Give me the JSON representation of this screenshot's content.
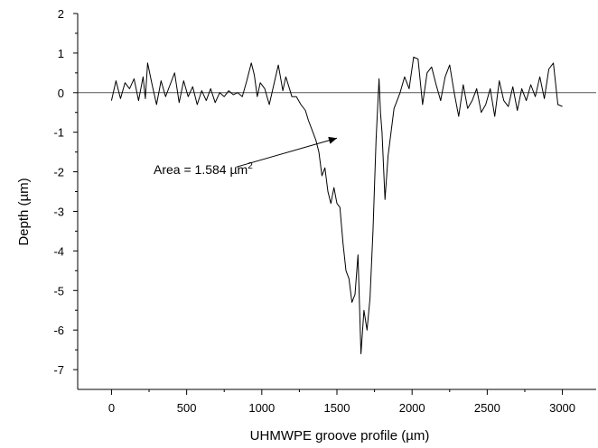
{
  "chart_data": {
    "type": "line",
    "title": "",
    "xlabel": "UHMWPE groove profile (µm)",
    "ylabel": "Depth (µm)",
    "xlim": [
      -225,
      3225
    ],
    "ylim": [
      -7.5,
      2
    ],
    "xticks": [
      0,
      500,
      1000,
      1500,
      2000,
      2500,
      3000
    ],
    "xtick_labels": [
      "0",
      "500",
      "1000",
      "1500",
      "2000",
      "2500",
      "3000"
    ],
    "yticks": [
      2,
      1,
      0,
      -1,
      -2,
      -3,
      -4,
      -5,
      -6,
      -7
    ],
    "ytick_labels": [
      "2",
      "1",
      "0",
      "-1",
      "-2",
      "-3",
      "-4",
      "-5",
      "-6",
      "-7"
    ],
    "grid": false,
    "reference_line": {
      "y": 0
    },
    "annotation": {
      "text": "Area = 1.584 µm",
      "superscript": "2",
      "text_at": [
        280,
        -2.05
      ],
      "arrow_from": [
        830,
        -1.88
      ],
      "arrow_to": [
        1500,
        -1.15
      ]
    },
    "series": [
      {
        "name": "",
        "x": [
          0,
          30,
          60,
          90,
          120,
          150,
          180,
          210,
          225,
          240,
          270,
          300,
          330,
          360,
          390,
          420,
          450,
          480,
          510,
          540,
          570,
          600,
          630,
          660,
          690,
          720,
          750,
          780,
          810,
          840,
          870,
          900,
          930,
          950,
          970,
          990,
          1020,
          1050,
          1080,
          1110,
          1140,
          1160,
          1180,
          1200,
          1230,
          1260,
          1290,
          1310,
          1340,
          1360,
          1380,
          1400,
          1420,
          1440,
          1460,
          1480,
          1500,
          1520,
          1540,
          1560,
          1580,
          1600,
          1620,
          1640,
          1660,
          1680,
          1700,
          1720,
          1740,
          1760,
          1780,
          1790,
          1800,
          1820,
          1840,
          1860,
          1880,
          1900,
          1920,
          1950,
          1980,
          2010,
          2040,
          2070,
          2100,
          2130,
          2160,
          2190,
          2220,
          2250,
          2280,
          2310,
          2340,
          2370,
          2400,
          2430,
          2460,
          2490,
          2520,
          2550,
          2580,
          2610,
          2640,
          2670,
          2700,
          2730,
          2760,
          2790,
          2820,
          2850,
          2880,
          2910,
          2940,
          2970,
          3000
        ],
        "values": [
          -0.2,
          0.3,
          -0.15,
          0.25,
          0.1,
          0.35,
          -0.2,
          0.4,
          -0.15,
          0.75,
          0.2,
          -0.3,
          0.3,
          -0.1,
          0.2,
          0.5,
          -0.25,
          0.3,
          -0.1,
          0.15,
          -0.3,
          0.05,
          -0.2,
          0.1,
          -0.25,
          0.0,
          -0.1,
          0.05,
          -0.05,
          0.0,
          -0.1,
          0.3,
          0.75,
          0.45,
          -0.1,
          0.25,
          0.1,
          -0.3,
          0.2,
          0.7,
          0.05,
          0.4,
          0.15,
          -0.1,
          -0.1,
          -0.3,
          -0.45,
          -0.7,
          -1.0,
          -1.2,
          -1.5,
          -2.1,
          -1.9,
          -2.5,
          -2.8,
          -2.4,
          -2.8,
          -2.9,
          -3.8,
          -4.5,
          -4.7,
          -5.3,
          -5.1,
          -4.1,
          -6.6,
          -5.5,
          -6.0,
          -5.2,
          -3.5,
          -1.2,
          0.35,
          -0.5,
          -1.0,
          -2.7,
          -1.6,
          -1.0,
          -0.4,
          -0.2,
          0.0,
          0.4,
          0.1,
          0.9,
          0.85,
          -0.3,
          0.5,
          0.65,
          0.2,
          -0.2,
          0.4,
          0.7,
          0.0,
          -0.6,
          0.2,
          -0.4,
          -0.2,
          0.1,
          -0.5,
          -0.3,
          0.1,
          -0.6,
          0.3,
          -0.2,
          -0.35,
          0.15,
          -0.45,
          0.1,
          -0.2,
          0.2,
          -0.1,
          0.4,
          -0.15,
          0.6,
          0.75,
          -0.3,
          -0.35
        ]
      }
    ]
  }
}
